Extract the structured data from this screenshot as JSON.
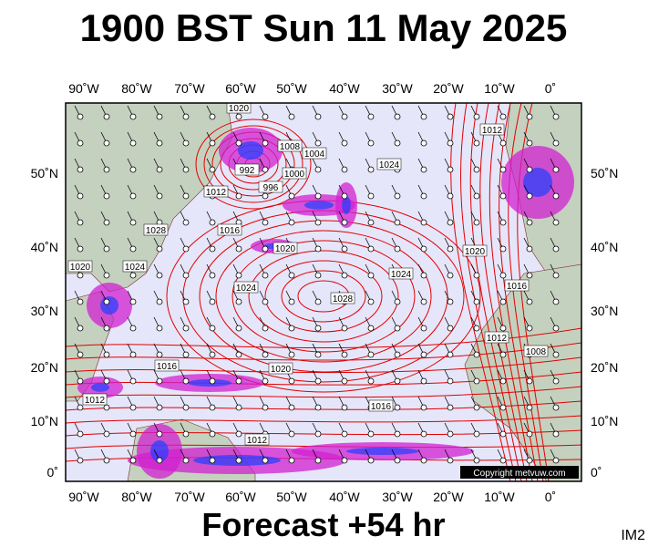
{
  "header": {
    "title": "1900 BST Sun 11 May 2025"
  },
  "footer": {
    "forecast": "Forecast +54 hr",
    "code": "IM2"
  },
  "map": {
    "copyright": "Copyright metvuw.com",
    "lon_labels": [
      "90˚W",
      "80˚W",
      "70˚W",
      "60˚W",
      "50˚W",
      "40˚W",
      "30˚W",
      "20˚W",
      "10˚W",
      "0˚"
    ],
    "lat_labels": [
      "50˚N",
      "40˚N",
      "30˚N",
      "20˚N",
      "10˚N",
      "0˚"
    ],
    "isobar_labels": [
      "1020",
      "992",
      "996",
      "1000",
      "1004",
      "1008",
      "1012",
      "1016",
      "1028",
      "1020",
      "1024",
      "1020",
      "1024",
      "1028",
      "1024",
      "1024",
      "1020",
      "1016",
      "1012",
      "1008",
      "1016",
      "1020",
      "1016",
      "1012",
      "1012",
      "1012"
    ]
  }
}
